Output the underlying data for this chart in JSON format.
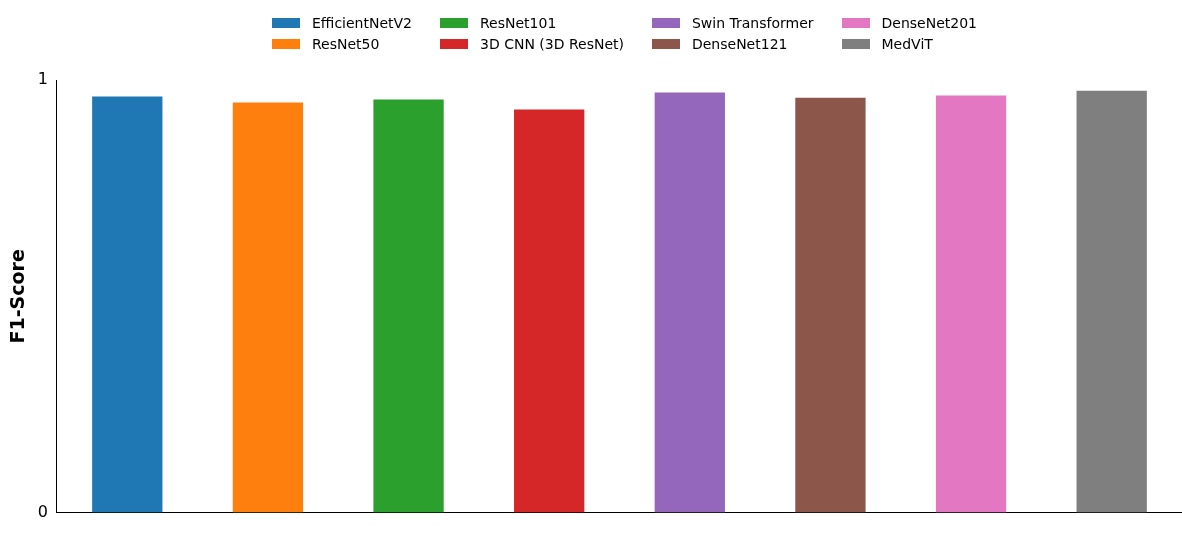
{
  "chart_data": {
    "type": "bar",
    "ylabel": "F1-Score",
    "categories": [
      null,
      null,
      null,
      null,
      null,
      null,
      null,
      null
    ],
    "ylim": [
      0,
      1
    ],
    "yticks": [
      0,
      1
    ],
    "grid": false,
    "legend": "top",
    "series": [
      {
        "name": "EfficientNetV2",
        "color": "#1f77b4",
        "values": [
          0.962,
          null,
          null,
          null,
          null,
          null,
          null,
          null
        ]
      },
      {
        "name": "ResNet50",
        "color": "#ff7f0e",
        "values": [
          null,
          0.948,
          null,
          null,
          null,
          null,
          null,
          null
        ]
      },
      {
        "name": "ResNet101",
        "color": "#2ca02c",
        "values": [
          null,
          null,
          0.955,
          null,
          null,
          null,
          null,
          null
        ]
      },
      {
        "name": "3D CNN (3D ResNet)",
        "color": "#d62728",
        "values": [
          null,
          null,
          null,
          0.932,
          null,
          null,
          null,
          null
        ]
      },
      {
        "name": "Swin Transformer",
        "color": "#9467bd",
        "values": [
          null,
          null,
          null,
          null,
          0.971,
          null,
          null,
          null
        ]
      },
      {
        "name": "DenseNet121",
        "color": "#8c564b",
        "values": [
          null,
          null,
          null,
          null,
          null,
          0.959,
          null,
          null
        ]
      },
      {
        "name": "DenseNet201",
        "color": "#e377c2",
        "values": [
          null,
          null,
          null,
          null,
          null,
          null,
          0.964,
          null
        ]
      },
      {
        "name": "MedViT",
        "color": "#7f7f7f",
        "values": [
          null,
          null,
          null,
          null,
          null,
          null,
          null,
          0.975
        ]
      }
    ]
  }
}
